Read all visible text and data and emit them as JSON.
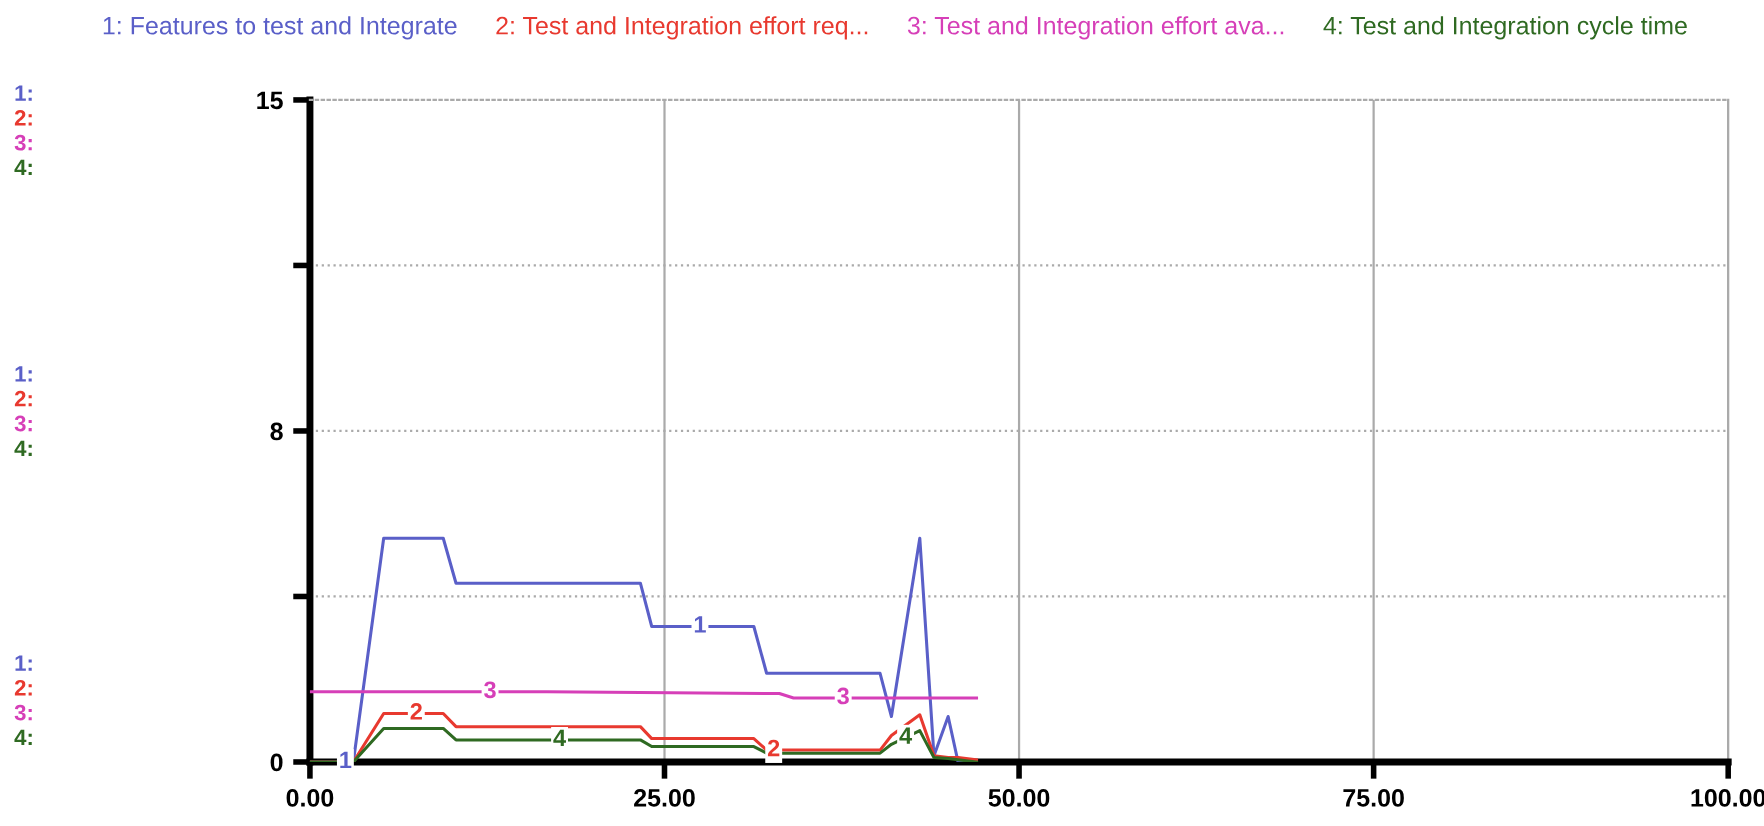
{
  "chart_data": {
    "type": "line",
    "x": [
      0,
      3.06,
      5.2,
      9.4,
      10.3,
      23.3,
      24.1,
      31.3,
      32.2,
      40.2,
      41.0,
      43.0,
      44.0,
      45.0,
      45.7,
      47.0
    ],
    "series": [
      {
        "name": "1: Features to test and Integrate",
        "color": "#5a5fc8",
        "values": [
          0,
          0,
          5.07,
          5.07,
          4.05,
          4.05,
          3.07,
          3.07,
          2.01,
          2.01,
          1.03,
          5.07,
          0.14,
          1.03,
          0,
          0
        ]
      },
      {
        "name": "2: Test and Integration effort req...",
        "color": "#e8392f",
        "values": [
          0,
          0,
          1.1,
          1.1,
          0.8,
          0.8,
          0.53,
          0.53,
          0.27,
          0.27,
          0.6,
          1.07,
          0.14,
          0.1,
          0.1,
          0.05
        ]
      },
      {
        "name": "3: Test and Integration effort ava...",
        "color": "#d63fb8",
        "x": [
          0,
          16.7,
          33.1,
          34.1,
          47.0
        ],
        "values": [
          1.59,
          1.59,
          1.55,
          1.45,
          1.45
        ]
      },
      {
        "name": "4: Test and Integration cycle time",
        "color": "#2f6a22",
        "values": [
          0,
          0,
          0.76,
          0.76,
          0.5,
          0.5,
          0.35,
          0.35,
          0.2,
          0.2,
          0.4,
          0.71,
          0.1,
          0.08,
          0.05,
          0
        ]
      }
    ],
    "xlim": [
      0,
      100
    ],
    "ylim": [
      0,
      15
    ],
    "xticks": [
      {
        "value": 0,
        "label": "0.00"
      },
      {
        "value": 25,
        "label": "25.00"
      },
      {
        "value": 50,
        "label": "50.00"
      },
      {
        "value": 75,
        "label": "75.00"
      },
      {
        "value": 100,
        "label": "100.00"
      }
    ],
    "yticks": [
      0,
      {
        "value": 3.75,
        "label": null
      },
      {
        "value": 7.5,
        "label": "8"
      },
      {
        "value": 11.25,
        "label": null
      },
      15
    ],
    "grid": true,
    "legend": "top",
    "marker": "none",
    "line_style": "solid",
    "annotations": [
      {
        "text": "1",
        "x": 2.5,
        "y": 0
      },
      {
        "text": "1",
        "x": 27.5,
        "y": 3.07
      },
      {
        "text": "2",
        "x": 7.5,
        "y": 1.1
      },
      {
        "text": "2",
        "x": 32.7,
        "y": 0.27
      },
      {
        "text": "3",
        "x": 12.7,
        "y": 1.59
      },
      {
        "text": "3",
        "x": 37.6,
        "y": 1.45
      },
      {
        "text": "4",
        "x": 17.6,
        "y": 0.5
      },
      {
        "text": "4",
        "x": 42.0,
        "y": 0.55
      },
      "1:",
      "2:",
      "3:",
      "4:",
      "1:",
      "2:",
      "3:",
      "4:",
      "1:",
      "2:",
      "3:",
      "4:"
    ]
  }
}
